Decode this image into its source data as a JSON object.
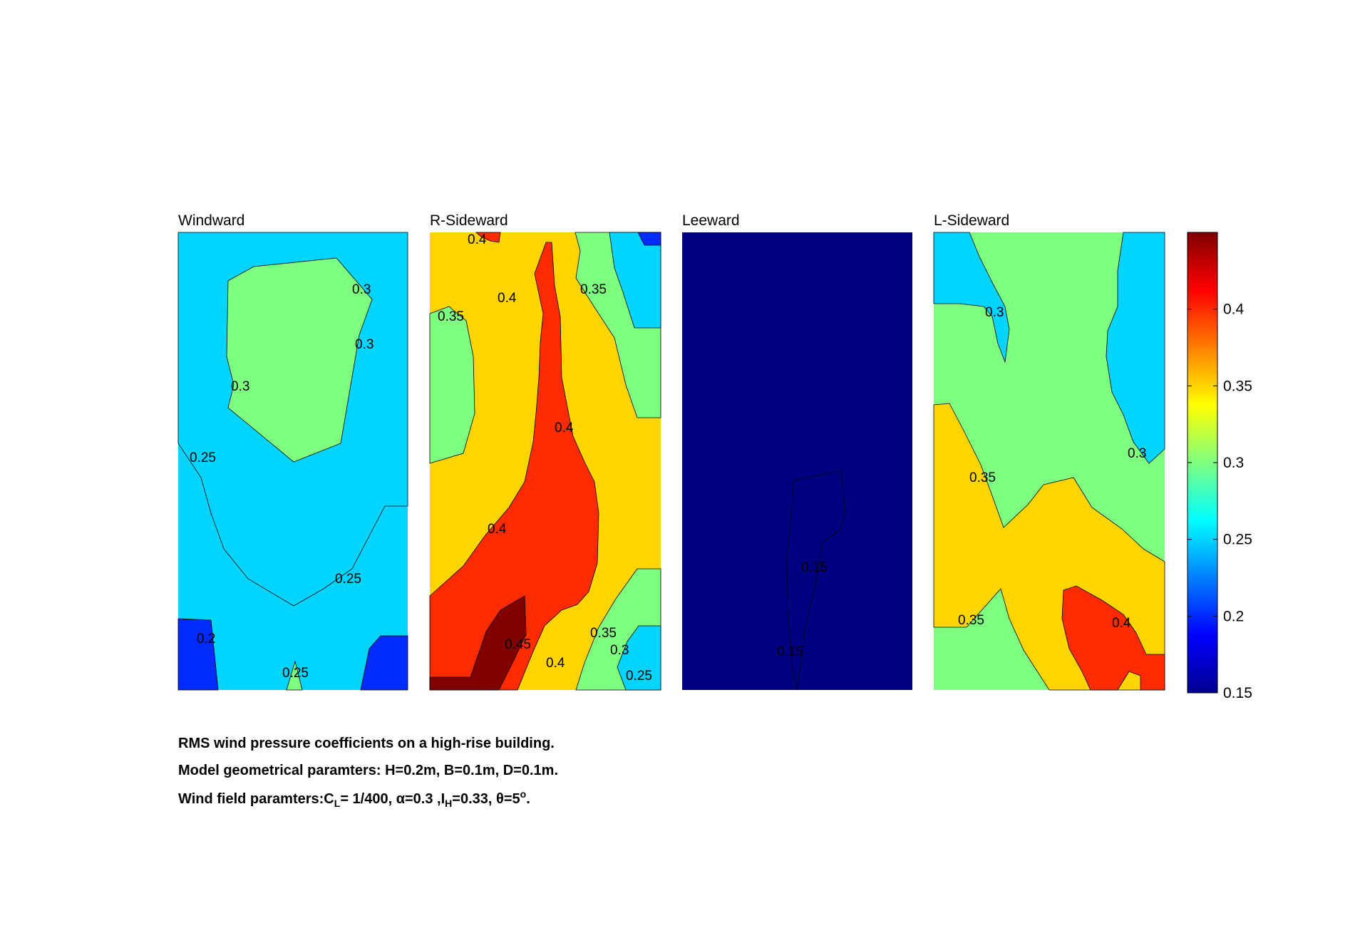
{
  "chart_data": {
    "type": "contour",
    "colormap": "jet",
    "clim": [
      0.15,
      0.45
    ],
    "colorbar": {
      "ticks": [
        0.15,
        0.2,
        0.25,
        0.3,
        0.35,
        0.4
      ],
      "tick_labels": [
        "0.15",
        "0.2",
        "0.25",
        "0.3",
        "0.35",
        "0.4"
      ]
    },
    "panels": [
      {
        "title": "Windward",
        "background_level": 0.25,
        "regions": [
          {
            "level": 0.2
          },
          {
            "level": 0.2
          },
          {
            "level": 0.3
          },
          {
            "level": 0.25
          },
          {
            "level": 0.3
          }
        ],
        "contour_labels": [
          "0.3",
          "0.3",
          "0.3",
          "0.25",
          "0.25",
          "0.2",
          "0.25"
        ]
      },
      {
        "title": "R-Sideward",
        "background_level": 0.35,
        "regions": [
          {
            "level": 0.3
          },
          {
            "level": 0.3
          },
          {
            "level": 0.25
          },
          {
            "level": 0.3
          },
          {
            "level": 0.25
          },
          {
            "level": 0.2
          },
          {
            "level": 0.4
          },
          {
            "level": 0.4
          },
          {
            "level": 0.45
          }
        ],
        "contour_labels": [
          "0.4",
          "0.4",
          "0.35",
          "0.35",
          "0.4",
          "0.4",
          "0.45",
          "0.4",
          "0.35",
          "0.3",
          "0.25"
        ]
      },
      {
        "title": "Leeward",
        "background_level": 0.15,
        "regions": [
          {
            "level": 0.15
          }
        ],
        "contour_labels": [
          "0.15",
          "0.15"
        ]
      },
      {
        "title": "L-Sideward",
        "background_level": 0.3,
        "regions": [
          {
            "level": 0.25
          },
          {
            "level": 0.25
          },
          {
            "level": 0.35
          },
          {
            "level": 0.4
          }
        ],
        "contour_labels": [
          "0.3",
          "0.3",
          "0.35",
          "0.35",
          "0.4"
        ]
      }
    ]
  },
  "caption": {
    "line1": "RMS wind pressure coefficients on a high-rise building.",
    "line2": "Model geometrical paramters: H=0.2m, B=0.1m, D=0.1m.",
    "line3": {
      "prefix": "Wind field paramters:C",
      "cl_sub": "L",
      "after_cl": "= 1/400, α=0.3 ,I",
      "ih_sub": "H",
      "after_ih": "=0.33, θ=5",
      "deg_sup": "o",
      "end": "."
    }
  }
}
